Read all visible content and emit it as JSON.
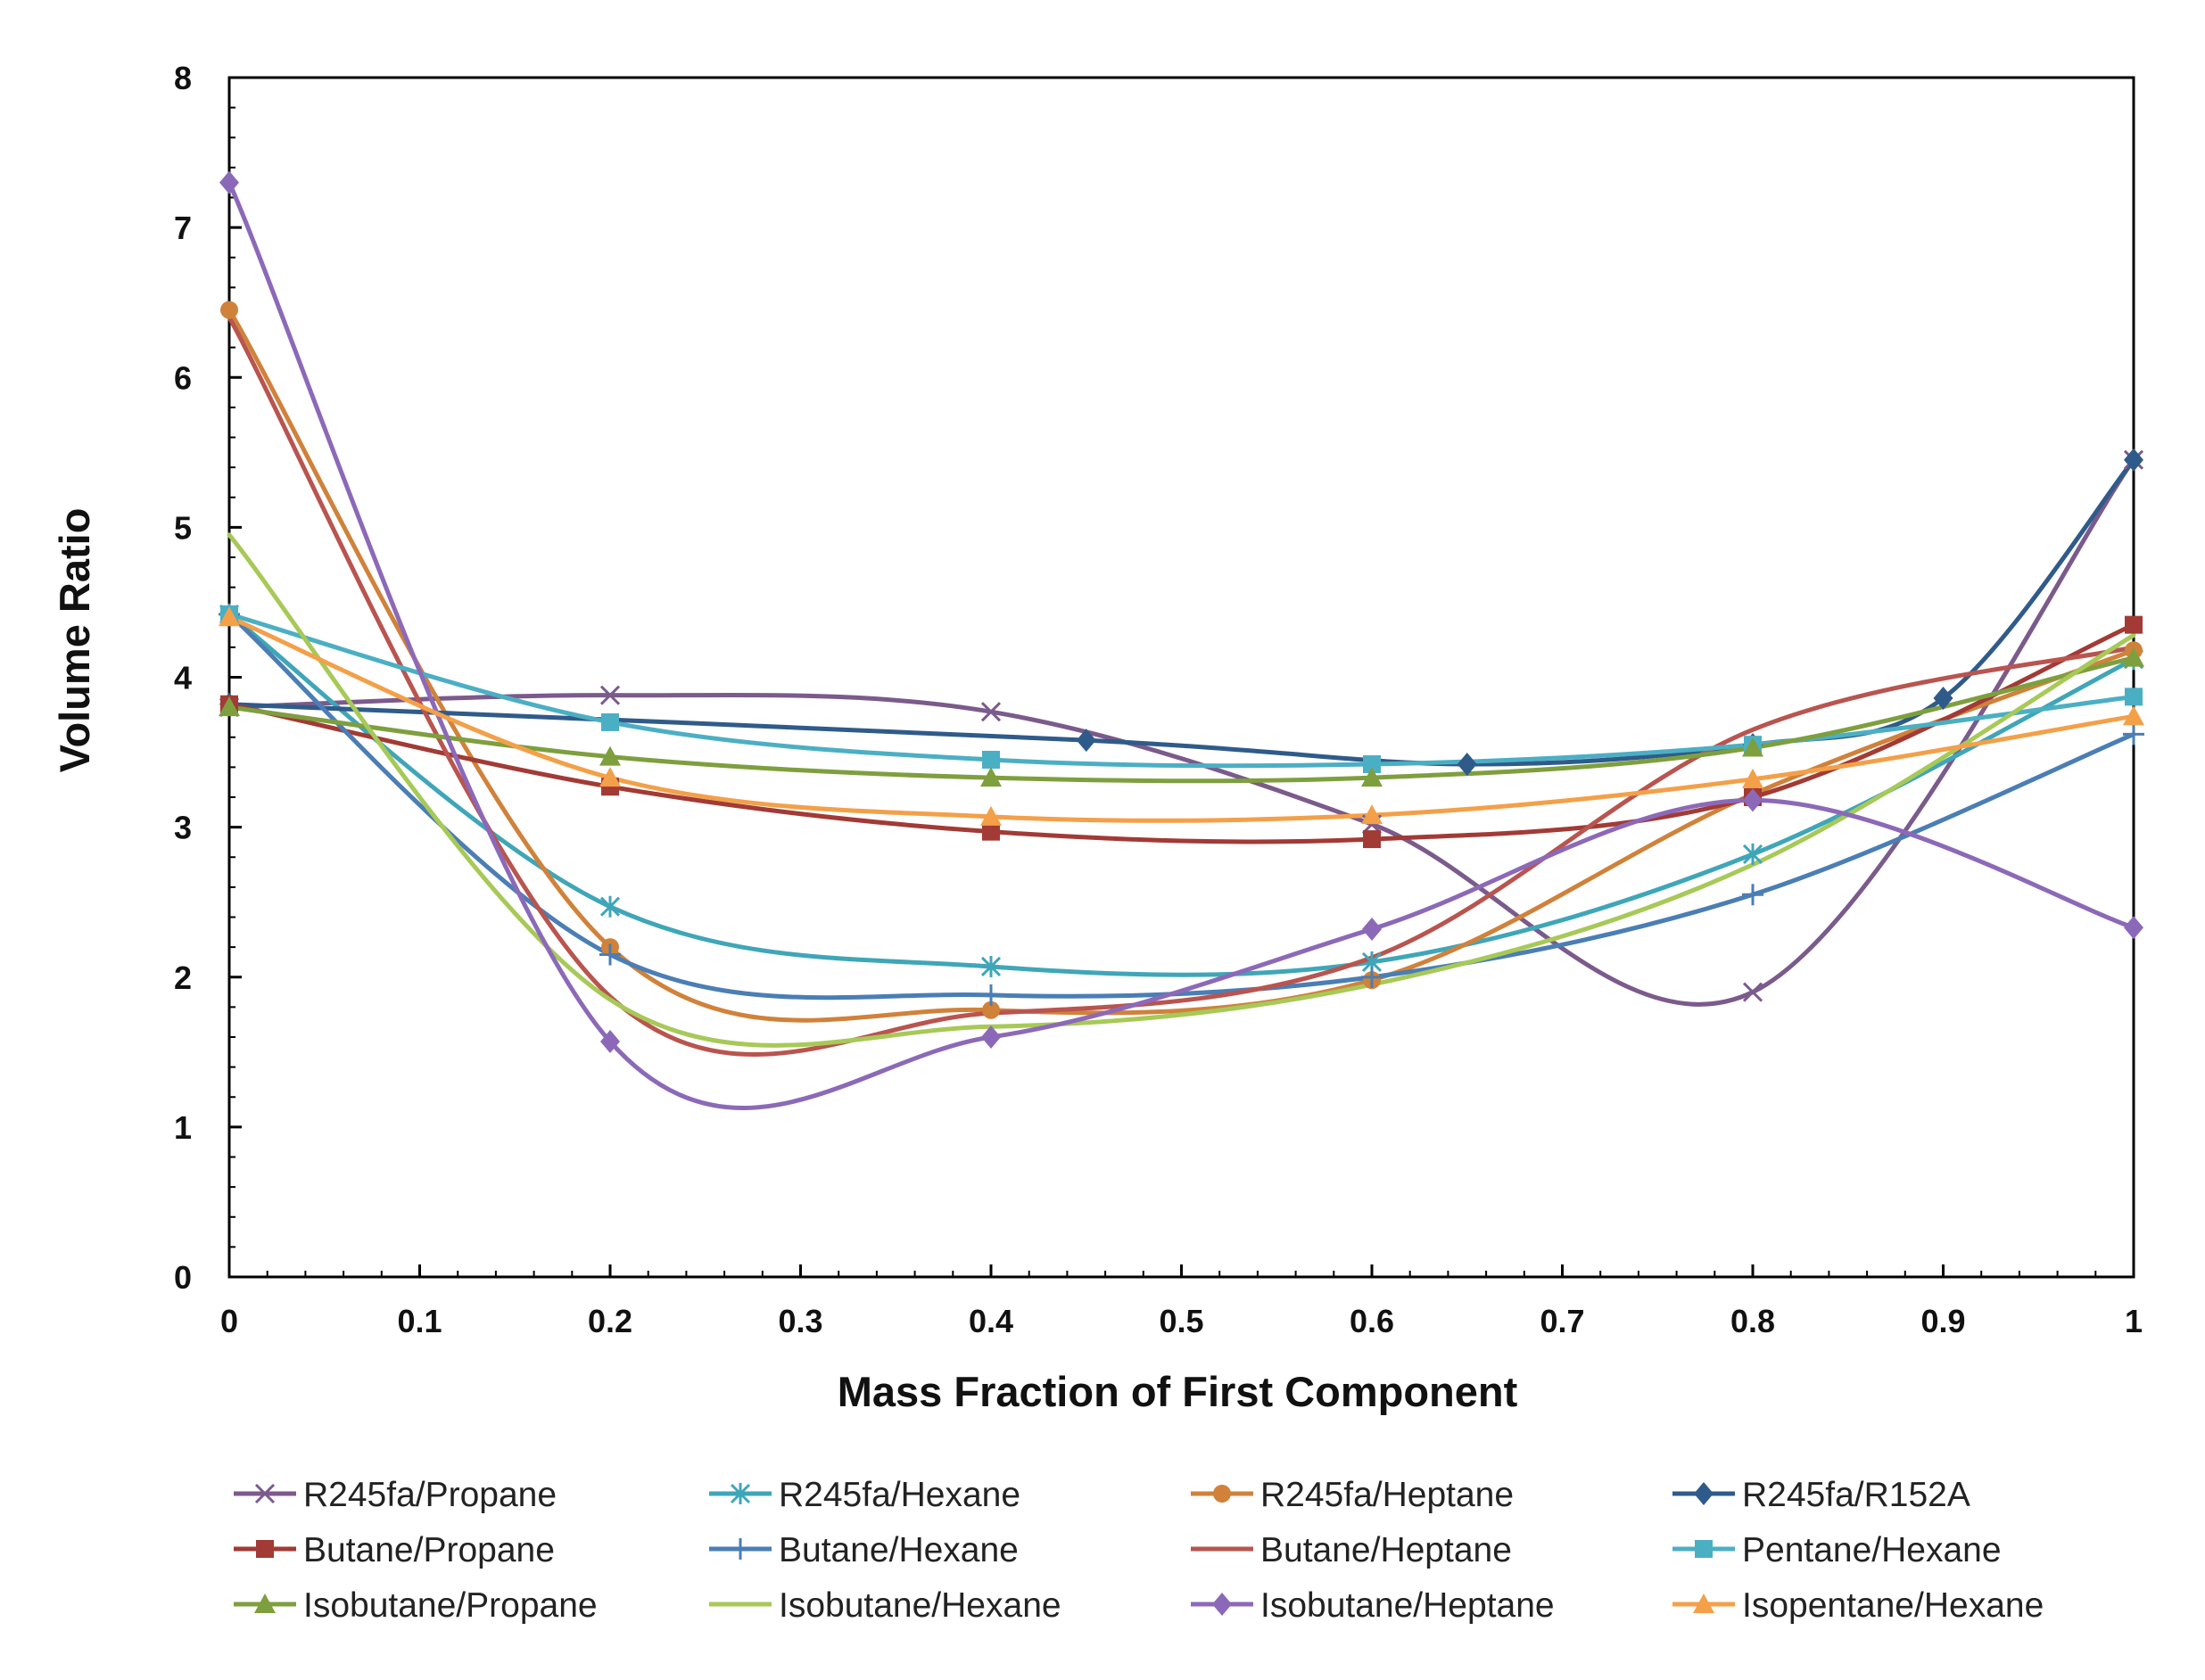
{
  "chart_data": {
    "type": "line",
    "title": "",
    "xlabel": "Mass Fraction of First Component",
    "ylabel": "Volume Ratio",
    "xlim": [
      0,
      1
    ],
    "ylim": [
      0,
      8
    ],
    "x_ticks": [
      "0",
      "0.1",
      "0.2",
      "0.3",
      "0.4",
      "0.5",
      "0.6",
      "0.7",
      "0.8",
      "0.9",
      "1"
    ],
    "y_ticks": [
      "0",
      "1",
      "2",
      "3",
      "4",
      "5",
      "6",
      "7",
      "8"
    ],
    "grid": false,
    "legend_position": "bottom",
    "series": [
      {
        "name": "R245fa/Propane",
        "color": "#7B5A8C",
        "marker": "x",
        "x": [
          0,
          0.2,
          0.4,
          0.6,
          0.8,
          1
        ],
        "y": [
          3.8,
          3.88,
          3.77,
          3.02,
          1.9,
          5.45
        ]
      },
      {
        "name": "R245fa/Hexane",
        "color": "#3FA6B8",
        "marker": "star",
        "x": [
          0,
          0.2,
          0.4,
          0.6,
          0.8,
          1
        ],
        "y": [
          4.42,
          2.47,
          2.07,
          2.1,
          2.82,
          4.12
        ]
      },
      {
        "name": "R245fa/Heptane",
        "color": "#D0823A",
        "marker": "circle",
        "x": [
          0,
          0.2,
          0.4,
          0.6,
          0.8,
          1
        ],
        "y": [
          6.45,
          2.2,
          1.78,
          1.98,
          3.22,
          4.18
        ]
      },
      {
        "name": "R245fa/R152A",
        "color": "#2F5B8A",
        "marker": "diamond",
        "x": [
          0,
          0.45,
          0.65,
          0.8,
          0.9,
          1
        ],
        "y": [
          3.82,
          3.58,
          3.42,
          3.55,
          3.86,
          5.45
        ]
      },
      {
        "name": "Butane/Propane",
        "color": "#A23A35",
        "marker": "square",
        "x": [
          0,
          0.2,
          0.4,
          0.6,
          0.8,
          1
        ],
        "y": [
          3.82,
          3.27,
          2.97,
          2.92,
          3.2,
          4.35
        ]
      },
      {
        "name": "Butane/Hexane",
        "color": "#4A7EB5",
        "marker": "plus",
        "x": [
          0,
          0.2,
          0.4,
          0.6,
          0.8,
          1
        ],
        "y": [
          4.42,
          2.15,
          1.88,
          2.0,
          2.55,
          3.62
        ]
      },
      {
        "name": "Butane/Heptane",
        "color": "#B9544F",
        "marker": "none",
        "x": [
          0,
          0.2,
          0.4,
          0.6,
          0.8,
          1
        ],
        "y": [
          6.4,
          1.87,
          1.76,
          2.13,
          3.65,
          4.2
        ]
      },
      {
        "name": "Pentane/Hexane",
        "color": "#4BAFC4",
        "marker": "square",
        "x": [
          0,
          0.2,
          0.4,
          0.6,
          0.8,
          1
        ],
        "y": [
          4.42,
          3.7,
          3.45,
          3.42,
          3.55,
          3.87
        ]
      },
      {
        "name": "Isobutane/Propane",
        "color": "#7E9F3E",
        "marker": "triangle",
        "x": [
          0,
          0.2,
          0.4,
          0.6,
          0.8,
          1
        ],
        "y": [
          3.8,
          3.47,
          3.33,
          3.33,
          3.53,
          4.13
        ]
      },
      {
        "name": "Isobutane/Hexane",
        "color": "#A7C957",
        "marker": "none",
        "x": [
          0,
          0.2,
          0.4,
          0.6,
          0.8,
          1
        ],
        "y": [
          4.95,
          1.85,
          1.67,
          1.95,
          2.75,
          4.28
        ]
      },
      {
        "name": "Isobutane/Heptane",
        "color": "#8C69B8",
        "marker": "diamond",
        "x": [
          0,
          0.2,
          0.4,
          0.6,
          0.8,
          1
        ],
        "y": [
          7.3,
          1.57,
          1.6,
          2.32,
          3.18,
          2.33
        ]
      },
      {
        "name": "Isopentane/Hexane",
        "color": "#F3A049",
        "marker": "triangle",
        "x": [
          0,
          0.2,
          0.4,
          0.6,
          0.8,
          1
        ],
        "y": [
          4.4,
          3.33,
          3.07,
          3.08,
          3.32,
          3.74
        ]
      }
    ]
  }
}
